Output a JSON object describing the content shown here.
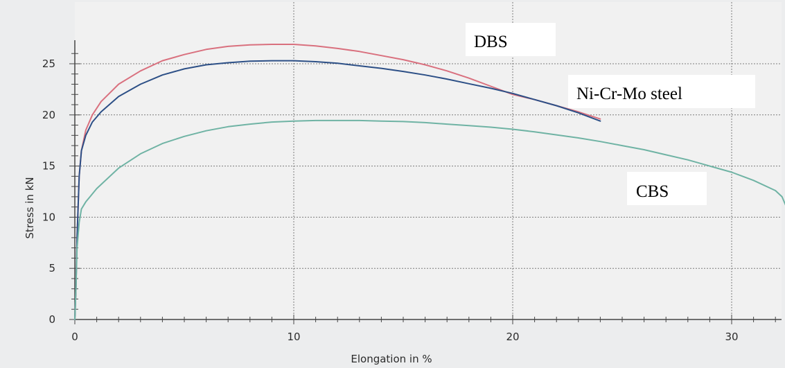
{
  "chart_data": {
    "type": "line",
    "xlabel": "Elongation in %",
    "ylabel": "Stress in kN",
    "xlim": [
      0,
      32.5
    ],
    "ylim": [
      0,
      27
    ],
    "x_ticks": [
      0,
      10,
      20,
      30
    ],
    "y_ticks": [
      0,
      5,
      10,
      15,
      20,
      25
    ],
    "grid": true,
    "series": [
      {
        "name": "DBS",
        "color": "#d9707e",
        "x": [
          0,
          0.05,
          0.1,
          0.2,
          0.3,
          0.5,
          0.8,
          1.2,
          2,
          3,
          4,
          5,
          6,
          7,
          8,
          9,
          10,
          11,
          12,
          13,
          14,
          15,
          16,
          17,
          18,
          19,
          20,
          21,
          22,
          23,
          24
        ],
        "y": [
          0,
          3,
          8,
          14,
          16.5,
          18.5,
          20,
          21.3,
          23,
          24.3,
          25.3,
          25.9,
          26.4,
          26.7,
          26.85,
          26.9,
          26.9,
          26.75,
          26.5,
          26.2,
          25.8,
          25.4,
          24.9,
          24.3,
          23.6,
          22.8,
          22.0,
          21.5,
          20.9,
          20.3,
          19.6
        ]
      },
      {
        "name": "Ni-Cr-Mo steel",
        "color": "#2c4f86",
        "x": [
          0,
          0.05,
          0.1,
          0.2,
          0.3,
          0.5,
          0.8,
          1.2,
          2,
          3,
          4,
          5,
          6,
          7,
          8,
          9,
          10,
          11,
          12,
          13,
          14,
          15,
          16,
          17,
          18,
          19,
          20,
          21,
          22,
          23,
          24
        ],
        "y": [
          0,
          3,
          8,
          14,
          16.5,
          18,
          19.3,
          20.3,
          21.8,
          23,
          23.9,
          24.5,
          24.9,
          25.1,
          25.25,
          25.3,
          25.3,
          25.2,
          25.05,
          24.8,
          24.55,
          24.25,
          23.9,
          23.5,
          23.05,
          22.6,
          22.1,
          21.5,
          20.9,
          20.2,
          19.4
        ]
      },
      {
        "name": "CBS",
        "color": "#6fb3a4",
        "x": [
          0,
          0.05,
          0.1,
          0.2,
          0.3,
          0.5,
          1,
          2,
          3,
          4,
          5,
          6,
          7,
          8,
          9,
          10,
          11,
          12,
          13,
          14,
          15,
          16,
          17,
          18,
          19,
          20,
          21,
          22,
          23,
          24,
          25,
          26,
          27,
          28,
          29,
          30,
          31,
          32,
          32.3,
          32.5
        ],
        "y": [
          0,
          3,
          7,
          9.5,
          10.8,
          11.5,
          12.8,
          14.8,
          16.2,
          17.2,
          17.9,
          18.45,
          18.85,
          19.1,
          19.3,
          19.4,
          19.45,
          19.45,
          19.45,
          19.4,
          19.35,
          19.25,
          19.1,
          18.95,
          18.8,
          18.6,
          18.35,
          18.05,
          17.75,
          17.4,
          17.0,
          16.6,
          16.1,
          15.6,
          15.0,
          14.4,
          13.6,
          12.6,
          12.0,
          11.0
        ]
      }
    ],
    "annotations": [
      {
        "text": "DBS",
        "series": "DBS"
      },
      {
        "text": "Ni-Cr-Mo steel",
        "series": "Ni-Cr-Mo steel"
      },
      {
        "text": "CBS",
        "series": "CBS"
      }
    ]
  }
}
